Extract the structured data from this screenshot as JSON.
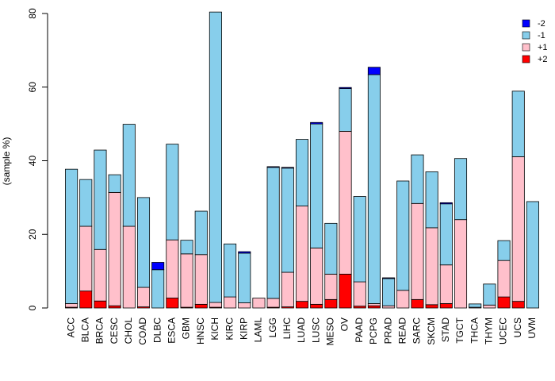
{
  "chart_data": {
    "type": "bar",
    "stacked": true,
    "title": "",
    "xlabel": "",
    "ylabel": "(sample %)",
    "ylim": [
      0,
      80
    ],
    "yticks": [
      0,
      20,
      40,
      60,
      80
    ],
    "grid": false,
    "legend_position": "top-right",
    "categories": [
      "ACC",
      "BLCA",
      "BRCA",
      "CESC",
      "CHOL",
      "COAD",
      "DLBC",
      "ESCA",
      "GBM",
      "HNSC",
      "KICH",
      "KIRC",
      "KIRP",
      "LAML",
      "LGG",
      "LIHC",
      "LUAD",
      "LUSC",
      "MESO",
      "OV",
      "PAAD",
      "PCPG",
      "PRAD",
      "READ",
      "SARC",
      "SKCM",
      "STAD",
      "TGCT",
      "THCA",
      "THYM",
      "UCEC",
      "UCS",
      "UVM"
    ],
    "series": [
      {
        "name": "+2",
        "color": "#ff0000",
        "values": [
          0.2,
          4.6,
          1.9,
          0.6,
          0,
          0.3,
          0,
          2.7,
          0.2,
          1.0,
          0.2,
          0,
          0,
          0,
          0.2,
          0.3,
          1.8,
          1.0,
          2.3,
          9.2,
          0.5,
          0.6,
          0,
          0,
          2.3,
          0.9,
          1.2,
          0,
          0,
          0,
          3.0,
          1.8,
          0
        ]
      },
      {
        "name": "+1",
        "color": "#ffc0cb",
        "values": [
          1.0,
          17.6,
          14.0,
          30.8,
          22.2,
          5.3,
          0,
          15.8,
          14.5,
          13.5,
          1.3,
          3.0,
          1.4,
          2.7,
          2.4,
          9.4,
          25.9,
          15.3,
          6.9,
          38.8,
          6.6,
          0.6,
          0.6,
          4.8,
          26.1,
          20.9,
          10.5,
          24.0,
          0.2,
          0.8,
          9.9,
          39.3,
          0
        ]
      },
      {
        "name": "-1",
        "color": "#87ceeb",
        "values": [
          36.5,
          12.7,
          27.0,
          4.8,
          27.7,
          24.4,
          10.4,
          26.0,
          3.7,
          11.8,
          78.9,
          14.4,
          13.5,
          0,
          35.6,
          28.3,
          18.1,
          33.7,
          13.8,
          11.6,
          23.2,
          62.2,
          7.4,
          29.7,
          13.2,
          15.2,
          16.6,
          16.6,
          0.9,
          5.7,
          5.4,
          17.8,
          28.9
        ]
      },
      {
        "name": "-2",
        "color": "#0000ff",
        "values": [
          0,
          0,
          0,
          0,
          0,
          0,
          2.0,
          0,
          0,
          0,
          0,
          0,
          0.4,
          0,
          0.2,
          0.2,
          0,
          0.4,
          0,
          0.3,
          0,
          2.0,
          0.2,
          0,
          0,
          0,
          0.3,
          0,
          0,
          0,
          0,
          0,
          0
        ]
      }
    ],
    "legend_order": [
      "-2",
      "-1",
      "+1",
      "+2"
    ]
  }
}
